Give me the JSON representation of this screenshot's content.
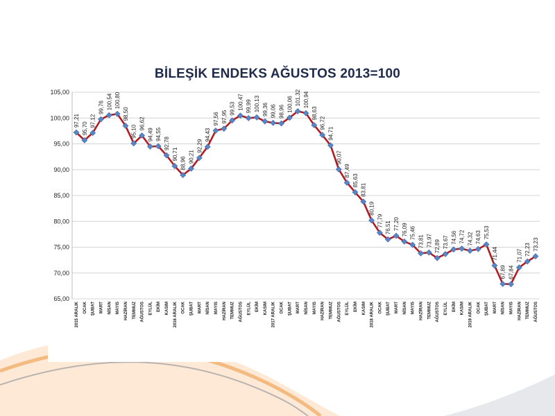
{
  "colors": {
    "line": "#b01c22",
    "marker": "#5b86c4",
    "marker_stroke": "#3d6aab",
    "grid": "#d4d4d4",
    "accent_orange": "#f3b678",
    "accent_grey": "#8a8f98"
  },
  "chart_data": {
    "type": "line",
    "title": "BİLEŞİK ENDEKS AĞUSTOS 2013=100",
    "xlabel": "",
    "ylabel": "",
    "ylim": [
      65,
      105
    ],
    "yticks": [
      "65,00",
      "70,00",
      "75,00",
      "80,00",
      "85,00",
      "90,00",
      "95,00",
      "100,00",
      "105,00"
    ],
    "grid": true,
    "legend": "none",
    "categories": [
      "2015 ARALIK",
      "OCAK",
      "ŞUBAT",
      "MART",
      "NİSAN",
      "MAYIS",
      "HAZİRAN",
      "TEMMUZ",
      "AĞUSTOS",
      "EYLÜL",
      "EKİM",
      "KASIM",
      "2016 ARALIK",
      "OCAK",
      "ŞUBAT",
      "MART",
      "NİSAN",
      "MAYIS",
      "HAZİRAN",
      "TEMMUZ",
      "AĞUSTOS",
      "EYLÜL",
      "EKİM",
      "KASIM",
      "2017 ARALIK",
      "OCAK",
      "ŞUBAT",
      "MART",
      "NİSAN",
      "MAYIS",
      "HAZİRAN",
      "TEMMUZ",
      "AĞUSTOS",
      "EYLÜL",
      "EKİM",
      "KASIM",
      "2018 ARALIK",
      "OCAK",
      "ŞUBAT",
      "MART",
      "NİSAN",
      "MAYIS",
      "HAZİRAN",
      "TEMMUZ",
      "AĞUSTOS",
      "EYLÜL",
      "EKİM",
      "KASIM",
      "2019 ARALIK",
      "OCAK",
      "ŞUBAT",
      "MART",
      "NİSAN",
      "MAYIS",
      "HAZİRAN",
      "TEMMUZ",
      "AĞUSTOS"
    ],
    "values": [
      97.21,
      95.7,
      97.12,
      99.76,
      100.54,
      100.8,
      98.5,
      95.1,
      96.62,
      94.49,
      94.55,
      92.78,
      90.71,
      88.96,
      90.21,
      92.29,
      94.43,
      97.56,
      97.95,
      99.53,
      100.47,
      99.99,
      100.13,
      99.36,
      99.06,
      98.96,
      100.06,
      101.32,
      100.94,
      98.63,
      96.72,
      94.71,
      90.07,
      87.49,
      85.63,
      83.81,
      80.19,
      77.79,
      76.51,
      77.2,
      76.09,
      75.46,
      73.81,
      73.97,
      72.89,
      73.67,
      74.56,
      74.72,
      74.32,
      74.63,
      75.53,
      71.44,
      67.89,
      67.84,
      71.07,
      72.23,
      73.23
    ],
    "data_labels": [
      "97,21",
      "95,70",
      "97,12",
      "99,76",
      "100,54",
      "100,80",
      "98,50",
      "95,10",
      "96,62",
      "94,49",
      "94,55",
      "92,78",
      "90,71",
      "88,96",
      "90,21",
      "92,29",
      "94,43",
      "97,56",
      "97,95",
      "99,53",
      "100,47",
      "99,99",
      "100,13",
      "99,36",
      "99,06",
      "98,96",
      "100,06",
      "101,32",
      "100,94",
      "98,63",
      "96,72",
      "94,71",
      "90,07",
      "87,49",
      "85,63",
      "83,81",
      "80,19",
      "77,79",
      "76,51",
      "77,20",
      "76,09",
      "75,46",
      "73,81",
      "73,97",
      "72,89",
      "73,67",
      "74,56",
      "74,72",
      "74,32",
      "74,63",
      "75,53",
      "71,44",
      "67,89",
      "67,84",
      "71,07",
      "72,23",
      "73,23"
    ]
  }
}
